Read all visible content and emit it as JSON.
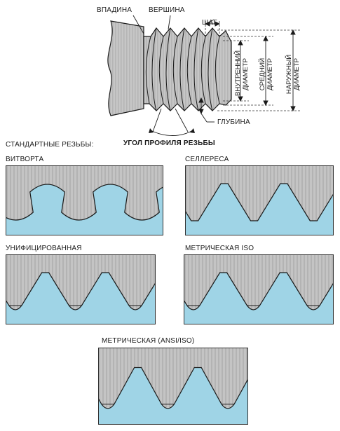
{
  "screw": {
    "valley": "ВПАДИНА",
    "crest": "ВЕРШИНА",
    "pitch": "ШАГ",
    "inner_diameter": "ВНУТРЕННИЙ ДИАМЕТР",
    "mean_diameter": "СРЕДНИЙ ДИАМЕТР",
    "outer_diameter": "НАРУЖНЫЙ ДИАМЕТР",
    "depth": "ГЛУБИНА",
    "profile_angle": "УГОЛ ПРОФИЛЯ РЕЗЬБЫ"
  },
  "section_title": "СТАНДАРТНЫЕ РЕЗЬБЫ:",
  "threads": [
    {
      "name": "ВИТВОРТА",
      "shape": "rounded"
    },
    {
      "name": "СЕЛЛЕРЕСА",
      "shape": "flat"
    },
    {
      "name": "УНИФИЦИРОВАННАЯ",
      "shape": "flat-rounded-root"
    },
    {
      "name": "МЕТРИЧЕСКАЯ ISO",
      "shape": "flat-rounded-root"
    },
    {
      "name": "МЕТРИЧЕСКАЯ (ANSI/ISO)",
      "shape": "flat-rounded-root"
    }
  ],
  "colors": {
    "metal": "#c4c4c4",
    "metal_stripe": "#b3b3b3",
    "nut": "#9fd4e6",
    "outline": "#1a1a1a"
  }
}
